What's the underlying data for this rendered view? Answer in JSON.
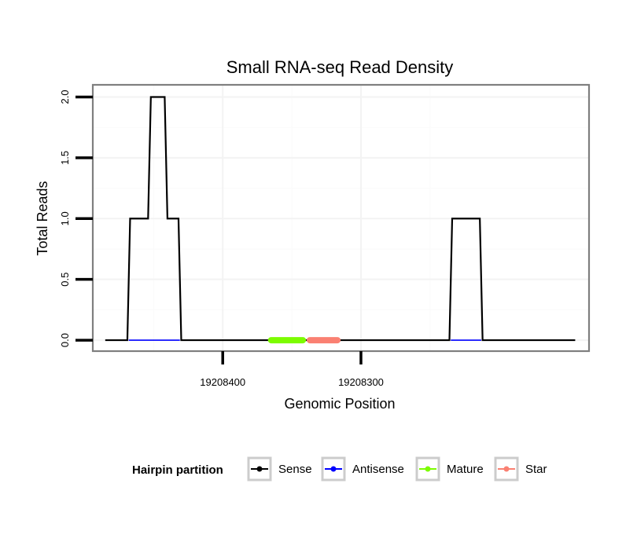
{
  "chart_data": {
    "type": "line",
    "title": "Small RNA-seq Read Density",
    "xlabel": "Genomic Position",
    "ylabel": "Total Reads",
    "x_reversed": true,
    "xlim": [
      19208135,
      19208494
    ],
    "ylim": [
      -0.09,
      2.1
    ],
    "x_ticks": [
      19208400,
      19208300
    ],
    "x_tick_labels": [
      "19208400",
      "19208300"
    ],
    "y_ticks": [
      0,
      0.5,
      1,
      1.5,
      2
    ],
    "y_tick_labels": [
      "0.0",
      "0.5",
      "1.0",
      "1.5",
      "2.0"
    ],
    "series": [
      {
        "name": "Sense",
        "color": "#000000",
        "x": [
          19208485,
          19208469,
          19208467,
          19208454,
          19208452,
          19208442,
          19208440,
          19208432,
          19208430,
          19208236,
          19208234,
          19208214,
          19208212,
          19208145
        ],
        "y": [
          0,
          0,
          1,
          1,
          2,
          2,
          1,
          1,
          0,
          0,
          1,
          1,
          0,
          0
        ]
      },
      {
        "name": "Antisense",
        "color": "#0000ff",
        "x": [
          19208468,
          19208431,
          null,
          19208235,
          19208213
        ],
        "y": [
          0,
          0,
          null,
          0,
          0
        ]
      },
      {
        "name": "Mature",
        "color": "#7cfc00",
        "x": [
          19208365,
          19208342
        ],
        "y": [
          0,
          0
        ]
      },
      {
        "name": "Star",
        "color": "#fa8072",
        "x": [
          19208337,
          19208317
        ],
        "y": [
          0,
          0
        ]
      }
    ],
    "legend": {
      "title": "Hairpin partition",
      "position": "bottom",
      "entries": [
        "Sense",
        "Antisense",
        "Mature",
        "Star"
      ]
    }
  }
}
